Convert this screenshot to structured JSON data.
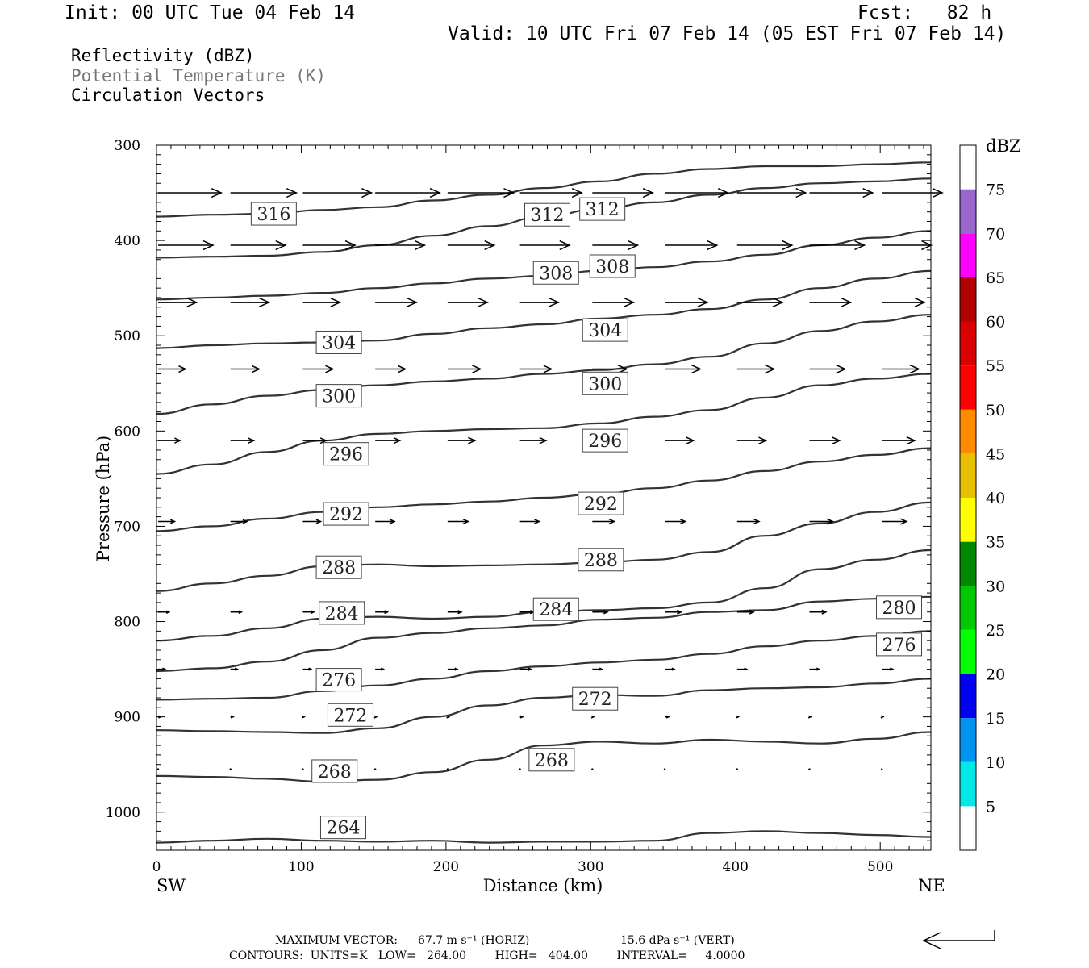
{
  "header": {
    "init": "Init: 00 UTC Tue 04 Feb 14",
    "fcst": "Fcst:   82 h",
    "valid": "Valid: 10 UTC Fri 07 Feb 14 (05 EST Fri 07 Feb 14)",
    "field1": "Reflectivity (dBZ)",
    "field2": "Potential Temperature (K)",
    "field3": "Circulation Vectors"
  },
  "footer": {
    "maxvec_label": "MAXIMUM VECTOR:",
    "maxvec_h": "67.7 m s⁻¹ (HORIZ)",
    "maxvec_v": "15.6 dPa s⁻¹ (VERT)",
    "contours": "CONTOURS:  UNITS=K   LOW=   264.00        HIGH=   404.00        INTERVAL=     4.0000"
  },
  "chart_data": {
    "type": "contour",
    "xlabel": "Distance (km)",
    "ylabel": "Pressure (hPa)",
    "xlim": [
      0,
      535
    ],
    "ylim": [
      300,
      1040
    ],
    "x_ticks": [
      0,
      100,
      200,
      300,
      400,
      500
    ],
    "y_ticks": [
      300,
      400,
      500,
      600,
      700,
      800,
      900,
      1000
    ],
    "x_endpoints": [
      "SW",
      "NE"
    ],
    "colorbar": {
      "unit": "dBZ",
      "ticks": [
        5,
        10,
        15,
        20,
        25,
        30,
        35,
        40,
        45,
        50,
        55,
        60,
        65,
        70,
        75
      ],
      "colors": [
        "#ffffff",
        "#00e8e8",
        "#0094f0",
        "#0000f0",
        "#00ff00",
        "#00c800",
        "#008800",
        "#ffff00",
        "#e8c000",
        "#ff8c00",
        "#ff0000",
        "#d80000",
        "#b00000",
        "#ff00ff",
        "#9966cc",
        "#ffffff"
      ]
    },
    "isentropes": [
      {
        "theta": 316,
        "p": [
          375,
          373,
          372,
          368,
          365,
          358,
          352,
          345,
          338,
          330,
          325,
          322,
          322,
          320,
          318
        ]
      },
      {
        "theta": 312,
        "p": [
          418,
          417,
          416,
          412,
          405,
          395,
          385,
          375,
          367,
          360,
          352,
          345,
          340,
          338,
          335
        ]
      },
      {
        "theta": 308,
        "p": [
          462,
          460,
          458,
          455,
          450,
          445,
          440,
          437,
          432,
          428,
          422,
          415,
          405,
          397,
          390
        ]
      },
      {
        "theta": 304,
        "p": [
          513,
          510,
          508,
          507,
          505,
          498,
          492,
          488,
          482,
          478,
          472,
          462,
          450,
          440,
          432
        ]
      },
      {
        "theta": 300,
        "p": [
          582,
          572,
          563,
          557,
          552,
          548,
          545,
          540,
          536,
          530,
          522,
          508,
          495,
          485,
          478
        ]
      },
      {
        "theta": 296,
        "p": [
          645,
          635,
          622,
          610,
          603,
          600,
          598,
          597,
          592,
          585,
          578,
          565,
          552,
          545,
          540
        ]
      },
      {
        "theta": 292,
        "p": [
          705,
          700,
          692,
          685,
          680,
          677,
          674,
          670,
          666,
          660,
          652,
          642,
          632,
          625,
          618
        ]
      },
      {
        "theta": 288,
        "p": [
          768,
          760,
          752,
          742,
          740,
          742,
          741,
          740,
          738,
          735,
          727,
          710,
          697,
          685,
          675
        ]
      },
      {
        "theta": 284,
        "p": [
          820,
          815,
          807,
          797,
          795,
          797,
          795,
          790,
          788,
          786,
          780,
          765,
          745,
          735,
          725
        ]
      },
      {
        "theta": 280,
        "p": [
          852,
          849,
          842,
          830,
          817,
          812,
          807,
          804,
          798,
          796,
          790,
          788,
          779,
          776,
          774
        ]
      },
      {
        "theta": 276,
        "p": [
          882,
          881,
          880,
          873,
          867,
          860,
          852,
          847,
          843,
          840,
          834,
          826,
          820,
          815,
          810
        ]
      },
      {
        "theta": 272,
        "p": [
          914,
          915,
          916,
          917,
          912,
          900,
          888,
          880,
          877,
          878,
          872,
          870,
          869,
          865,
          860
        ]
      },
      {
        "theta": 268,
        "p": [
          962,
          963,
          965,
          968,
          966,
          958,
          945,
          930,
          926,
          928,
          924,
          926,
          928,
          923,
          916
        ]
      },
      {
        "theta": 264,
        "p": [
          1032,
          1030,
          1028,
          1030,
          1031,
          1030,
          1032,
          1031,
          1031,
          1030,
          1022,
          1020,
          1022,
          1024,
          1026
        ]
      }
    ],
    "labels": [
      {
        "text": "316",
        "x": 81,
        "p": 372
      },
      {
        "text": "312",
        "x": 270,
        "p": 373
      },
      {
        "text": "312",
        "x": 308,
        "p": 367
      },
      {
        "text": "308",
        "x": 276,
        "p": 434
      },
      {
        "text": "308",
        "x": 315,
        "p": 427
      },
      {
        "text": "304",
        "x": 126,
        "p": 507
      },
      {
        "text": "304",
        "x": 310,
        "p": 494
      },
      {
        "text": "300",
        "x": 126,
        "p": 563
      },
      {
        "text": "300",
        "x": 310,
        "p": 550
      },
      {
        "text": "296",
        "x": 131,
        "p": 624
      },
      {
        "text": "296",
        "x": 310,
        "p": 610
      },
      {
        "text": "292",
        "x": 131,
        "p": 687
      },
      {
        "text": "292",
        "x": 307,
        "p": 676
      },
      {
        "text": "288",
        "x": 126,
        "p": 743
      },
      {
        "text": "288",
        "x": 307,
        "p": 735
      },
      {
        "text": "284",
        "x": 128,
        "p": 791
      },
      {
        "text": "284",
        "x": 276,
        "p": 787
      },
      {
        "text": "280",
        "x": 513,
        "p": 785
      },
      {
        "text": "276",
        "x": 126,
        "p": 861
      },
      {
        "text": "276",
        "x": 513,
        "p": 824
      },
      {
        "text": "272",
        "x": 134,
        "p": 898
      },
      {
        "text": "272",
        "x": 303,
        "p": 881
      },
      {
        "text": "268",
        "x": 123,
        "p": 957
      },
      {
        "text": "268",
        "x": 273,
        "p": 945
      },
      {
        "text": "264",
        "x": 129,
        "p": 1016
      }
    ],
    "vector_rows_p": [
      350,
      405,
      465,
      535,
      610,
      695,
      790,
      850,
      900,
      955
    ],
    "vector_cols_km": [
      0,
      50,
      100,
      150,
      200,
      250,
      300,
      350,
      400,
      450,
      500
    ],
    "vector_u": [
      [
        46,
        48,
        50,
        47,
        48,
        45,
        44,
        46,
        50,
        46,
        44
      ],
      [
        40,
        40,
        38,
        36,
        34,
        36,
        33,
        38,
        40,
        40,
        36
      ],
      [
        28,
        28,
        27,
        30,
        29,
        28,
        30,
        31,
        33,
        30,
        31
      ],
      [
        20,
        21,
        22,
        22,
        24,
        23,
        25,
        26,
        27,
        26,
        27
      ],
      [
        16,
        17,
        17,
        18,
        20,
        19,
        20,
        21,
        21,
        22,
        24
      ],
      [
        12,
        12,
        13,
        14,
        15,
        14,
        16,
        15,
        16,
        17,
        18
      ],
      [
        8,
        8,
        8,
        9,
        10,
        10,
        11,
        12,
        12,
        12,
        14
      ],
      [
        5,
        5,
        6,
        6,
        7,
        8,
        7,
        7,
        7,
        7,
        8
      ],
      [
        2,
        2,
        1,
        1,
        1,
        2,
        1,
        3,
        1,
        1,
        1
      ],
      [
        0,
        0,
        0,
        0,
        0,
        0,
        0,
        0,
        0,
        0,
        0
      ]
    ]
  }
}
